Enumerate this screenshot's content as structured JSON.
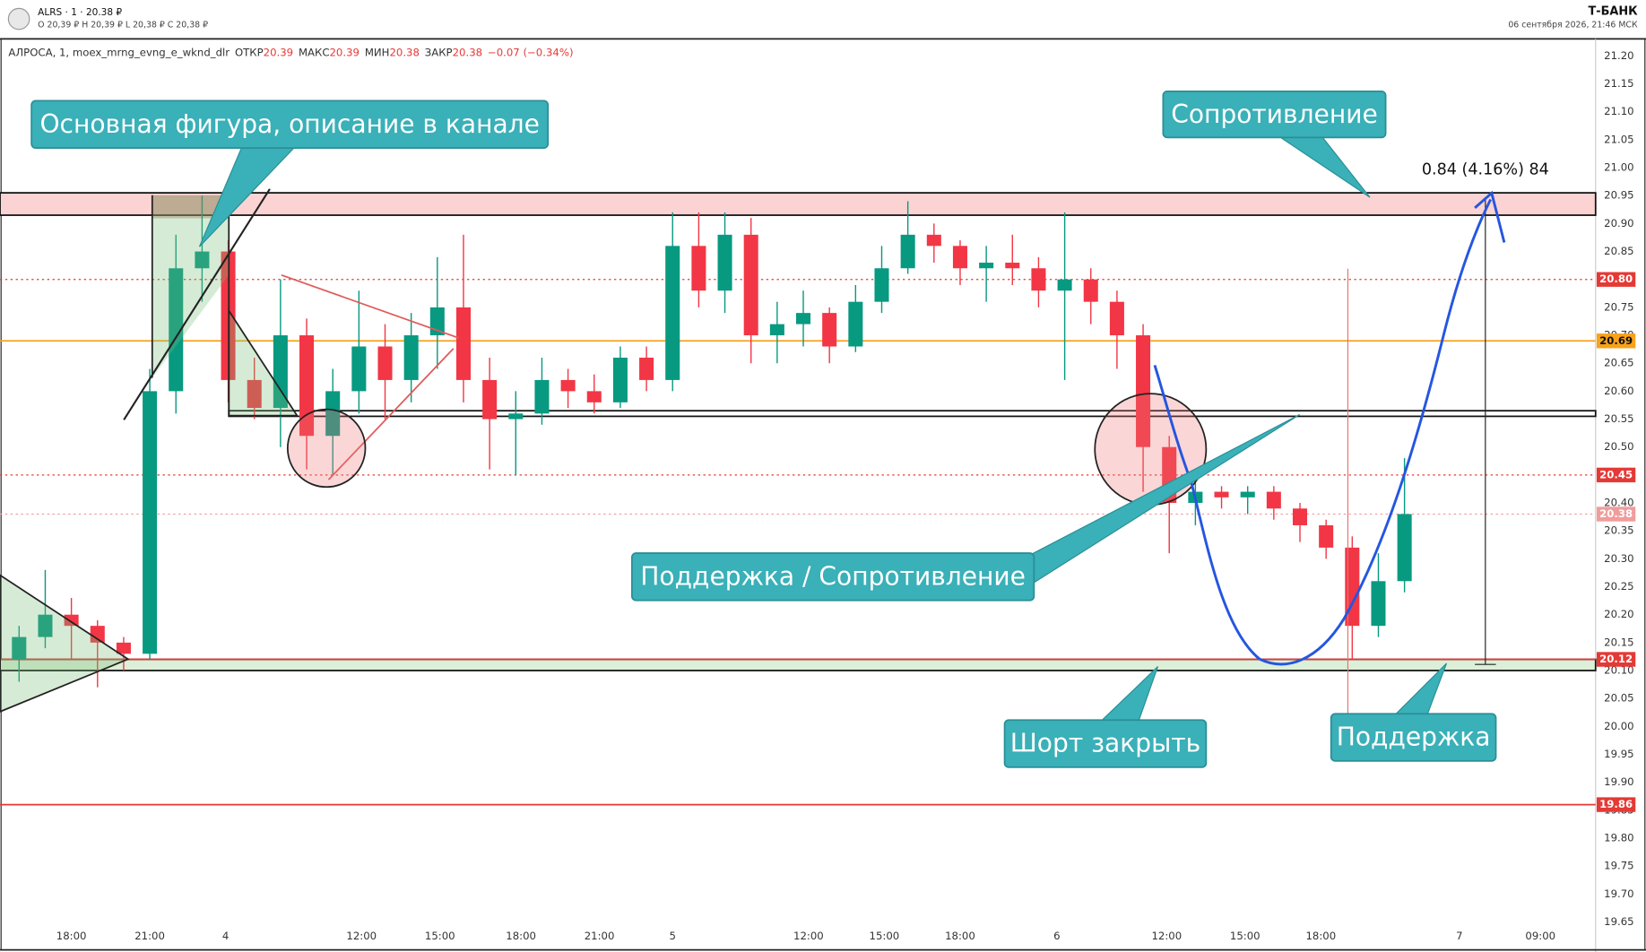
{
  "header": {
    "ticker": "ALRS · 1 · 20.38 ₽",
    "ohlc": "O 20,39 ₽  H 20,39 ₽  L 20,38 ₽  C 20,38 ₽",
    "brand": "Т-БАНК",
    "datetime": "06 сентября 2026, 21:46 МСК"
  },
  "legend": {
    "name": "АЛРОСА, 1, moex_mrng_evng_e_wknd_dlr",
    "open_label": "ОТКР",
    "open": "20.39",
    "high_label": "МАКС",
    "high": "20.39",
    "low_label": "МИН",
    "low": "20.38",
    "close_label": "ЗАКР",
    "close": "20.38",
    "change": "−0.07 (−0.34%)"
  },
  "chart_data": {
    "type": "candlestick",
    "up_color": "#089981",
    "down_color": "#f23645",
    "x": [
      -2,
      -1,
      0,
      1,
      2,
      3,
      4,
      5,
      6,
      7,
      8,
      9,
      10,
      11,
      12,
      13,
      14,
      15,
      16,
      17,
      18,
      19,
      20,
      21,
      22,
      23,
      24,
      25,
      26,
      27,
      28,
      29,
      30,
      31,
      32,
      33,
      34,
      35,
      36,
      37,
      38,
      39,
      40,
      41,
      42,
      43,
      44,
      45,
      46,
      47,
      48,
      49,
      50,
      51
    ],
    "open": [
      20.12,
      20.16,
      20.2,
      20.18,
      20.15,
      20.13,
      20.6,
      20.82,
      20.85,
      20.62,
      20.57,
      20.7,
      20.52,
      20.6,
      20.68,
      20.62,
      20.7,
      20.75,
      20.62,
      20.55,
      20.56,
      20.62,
      20.6,
      20.58,
      20.66,
      20.62,
      20.86,
      20.78,
      20.88,
      20.7,
      20.72,
      20.74,
      20.68,
      20.76,
      20.82,
      20.88,
      20.86,
      20.82,
      20.83,
      20.82,
      20.78,
      20.8,
      20.76,
      20.7,
      20.5,
      20.4,
      20.42,
      20.41,
      20.42,
      20.39,
      20.36,
      20.32,
      20.18,
      20.26
    ],
    "high": [
      20.18,
      20.28,
      20.23,
      20.19,
      20.16,
      20.64,
      20.88,
      20.95,
      20.87,
      20.66,
      20.8,
      20.73,
      20.64,
      20.78,
      20.72,
      20.74,
      20.84,
      20.88,
      20.66,
      20.6,
      20.66,
      20.64,
      20.63,
      20.68,
      20.68,
      20.92,
      20.92,
      20.92,
      20.91,
      20.76,
      20.78,
      20.75,
      20.79,
      20.86,
      20.94,
      20.9,
      20.87,
      20.86,
      20.88,
      20.84,
      20.92,
      20.82,
      20.78,
      20.72,
      20.52,
      20.44,
      20.43,
      20.43,
      20.43,
      20.4,
      20.37,
      20.34,
      20.31,
      20.48
    ],
    "low": [
      20.08,
      20.14,
      20.12,
      20.07,
      20.1,
      20.12,
      20.56,
      20.76,
      20.58,
      20.55,
      20.5,
      20.46,
      20.45,
      20.56,
      20.55,
      20.58,
      20.64,
      20.58,
      20.46,
      20.45,
      20.54,
      20.57,
      20.56,
      20.57,
      20.6,
      20.6,
      20.75,
      20.74,
      20.65,
      20.65,
      20.68,
      20.65,
      20.67,
      20.74,
      20.81,
      20.83,
      20.79,
      20.76,
      20.79,
      20.75,
      20.62,
      20.72,
      20.64,
      20.42,
      20.31,
      20.36,
      20.39,
      20.38,
      20.37,
      20.33,
      20.3,
      20.12,
      20.16,
      20.24
    ],
    "close": [
      20.16,
      20.2,
      20.18,
      20.15,
      20.13,
      20.6,
      20.82,
      20.85,
      20.62,
      20.57,
      20.7,
      20.52,
      20.6,
      20.68,
      20.62,
      20.7,
      20.75,
      20.62,
      20.55,
      20.56,
      20.62,
      20.6,
      20.58,
      20.66,
      20.62,
      20.86,
      20.78,
      20.88,
      20.7,
      20.72,
      20.74,
      20.68,
      20.76,
      20.82,
      20.88,
      20.86,
      20.82,
      20.83,
      20.82,
      20.78,
      20.8,
      20.76,
      20.7,
      20.5,
      20.4,
      20.42,
      20.41,
      20.42,
      20.39,
      20.36,
      20.32,
      20.18,
      20.26,
      20.38
    ],
    "xlim": [
      -2.73,
      58.31
    ],
    "xticks": [
      {
        "value": 0,
        "label": "18:00"
      },
      {
        "value": 3,
        "label": "21:00"
      },
      {
        "value": 5.9,
        "label": "4"
      },
      {
        "value": 11.1,
        "label": "12:00"
      },
      {
        "value": 14.1,
        "label": "15:00"
      },
      {
        "value": 17.2,
        "label": "18:00"
      },
      {
        "value": 20.2,
        "label": "21:00"
      },
      {
        "value": 23,
        "label": "5"
      },
      {
        "value": 28.2,
        "label": "12:00"
      },
      {
        "value": 31.1,
        "label": "15:00"
      },
      {
        "value": 34,
        "label": "18:00"
      },
      {
        "value": 37.7,
        "label": "6"
      },
      {
        "value": 41.9,
        "label": "12:00"
      },
      {
        "value": 44.9,
        "label": "15:00"
      },
      {
        "value": 47.8,
        "label": "18:00"
      },
      {
        "value": 53.1,
        "label": "7"
      },
      {
        "value": 56.2,
        "label": "09:00"
      }
    ],
    "ylim": [
      19.6,
      21.225
    ],
    "yticks": [
      19.65,
      {
        "value": 19.7,
        "label": "19.70"
      },
      19.75,
      {
        "value": 19.8,
        "label": "19.80"
      },
      19.85,
      {
        "value": 19.9,
        "label": "19.90"
      },
      19.95,
      {
        "value": 20,
        "label": "20.00"
      },
      20.05,
      {
        "value": 20.1,
        "label": "20.10"
      },
      20.15,
      {
        "value": 20.2,
        "label": "20.20"
      },
      20.25,
      {
        "value": 20.3,
        "label": "20.30"
      },
      20.35,
      {
        "value": 20.4,
        "label": "20.40"
      },
      20.45,
      {
        "value": 20.5,
        "label": "20.50"
      },
      20.55,
      {
        "value": 20.6,
        "label": "20.60"
      },
      20.65,
      {
        "value": 20.7,
        "label": "20.70"
      },
      20.75,
      {
        "value": 20.8,
        "label": "20.80"
      },
      20.85,
      {
        "value": 20.9,
        "label": "20.90"
      },
      20.95,
      {
        "value": 21,
        "label": "21.00"
      },
      21.05,
      {
        "value": 21.1,
        "label": "21.10"
      },
      21.15,
      {
        "value": 21.2,
        "label": "21.20"
      }
    ],
    "grid": false,
    "zones": [
      {
        "from": 20.915,
        "to": 20.955,
        "color": "#fbd3d3"
      },
      {
        "from": 20.1,
        "to": 20.12,
        "color": "#dcefd8"
      },
      {
        "from": 20.555,
        "to": 20.565,
        "color": "#ffffff"
      }
    ],
    "levels": [
      {
        "value": 20.8,
        "label": "20.80",
        "color": "#e53935",
        "dashed": true
      },
      {
        "value": 20.69,
        "label": "20.69",
        "color": "#f7a21b",
        "dashed": false
      },
      {
        "value": 20.45,
        "label": "20.45",
        "color": "#e53935",
        "dashed": true
      },
      {
        "value": 20.38,
        "label": "20.38",
        "color": "#f19c9c",
        "dashed": true
      },
      {
        "value": 20.12,
        "label": "20.12",
        "color": "#e53935",
        "dashed": false
      },
      {
        "value": 19.86,
        "label": "19.86",
        "color": "#e53935",
        "dashed": false
      }
    ],
    "annotations": [
      "Основная фигура, описание в канале",
      "Сопротивление",
      "Поддержка / Сопротивление",
      "Шорт закрыть",
      "Поддержка"
    ],
    "measure": "0.84 (4.16%) 84"
  }
}
